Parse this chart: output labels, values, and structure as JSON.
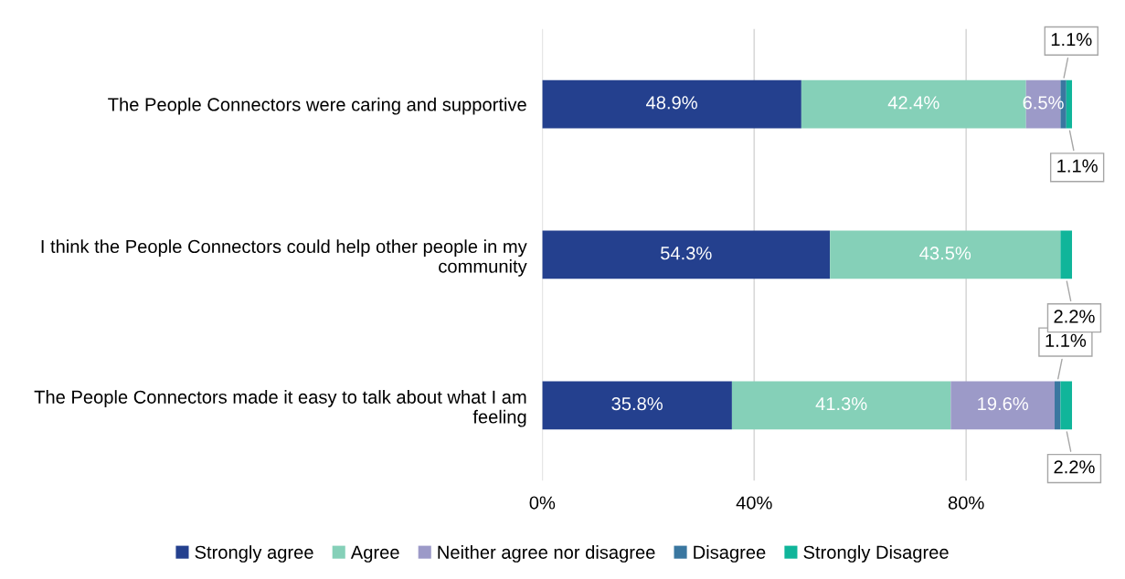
{
  "chart_data": {
    "type": "bar",
    "orientation": "horizontal",
    "stacked": true,
    "categories": [
      "The People Connectors were caring and supportive",
      "I think the People Connectors could help other people in my community",
      "The People Connectors made it easy to talk about what I am feeling"
    ],
    "series": [
      {
        "name": "Strongly agree",
        "color": "#24408e",
        "values": [
          48.9,
          54.3,
          35.8
        ],
        "value_labels": [
          "48.9%",
          "54.3%",
          "35.8%"
        ]
      },
      {
        "name": "Agree",
        "color": "#85d0b8",
        "values": [
          42.4,
          43.5,
          41.3
        ],
        "value_labels": [
          "42.4%",
          "43.5%",
          "41.3%"
        ]
      },
      {
        "name": "Neither agree nor disagree",
        "color": "#9c9ac8",
        "values": [
          6.5,
          0,
          19.6
        ],
        "value_labels": [
          "6.5%",
          null,
          "19.6%"
        ]
      },
      {
        "name": "Disagree",
        "color": "#3a77a0",
        "values": [
          1.1,
          0,
          1.1
        ],
        "value_labels": [
          "1.1%",
          null,
          "1.1%"
        ]
      },
      {
        "name": "Strongly Disagree",
        "color": "#10b59a",
        "values": [
          1.1,
          2.2,
          2.2
        ],
        "value_labels": [
          "1.1%",
          "2.2%",
          "2.2%"
        ]
      }
    ],
    "xlim": [
      0,
      100
    ],
    "xticks": [
      {
        "value": 0,
        "label": "0%"
      },
      {
        "value": 40,
        "label": "40%"
      },
      {
        "value": 80,
        "label": "80%"
      }
    ],
    "grid": "x",
    "legend": "bottom"
  }
}
